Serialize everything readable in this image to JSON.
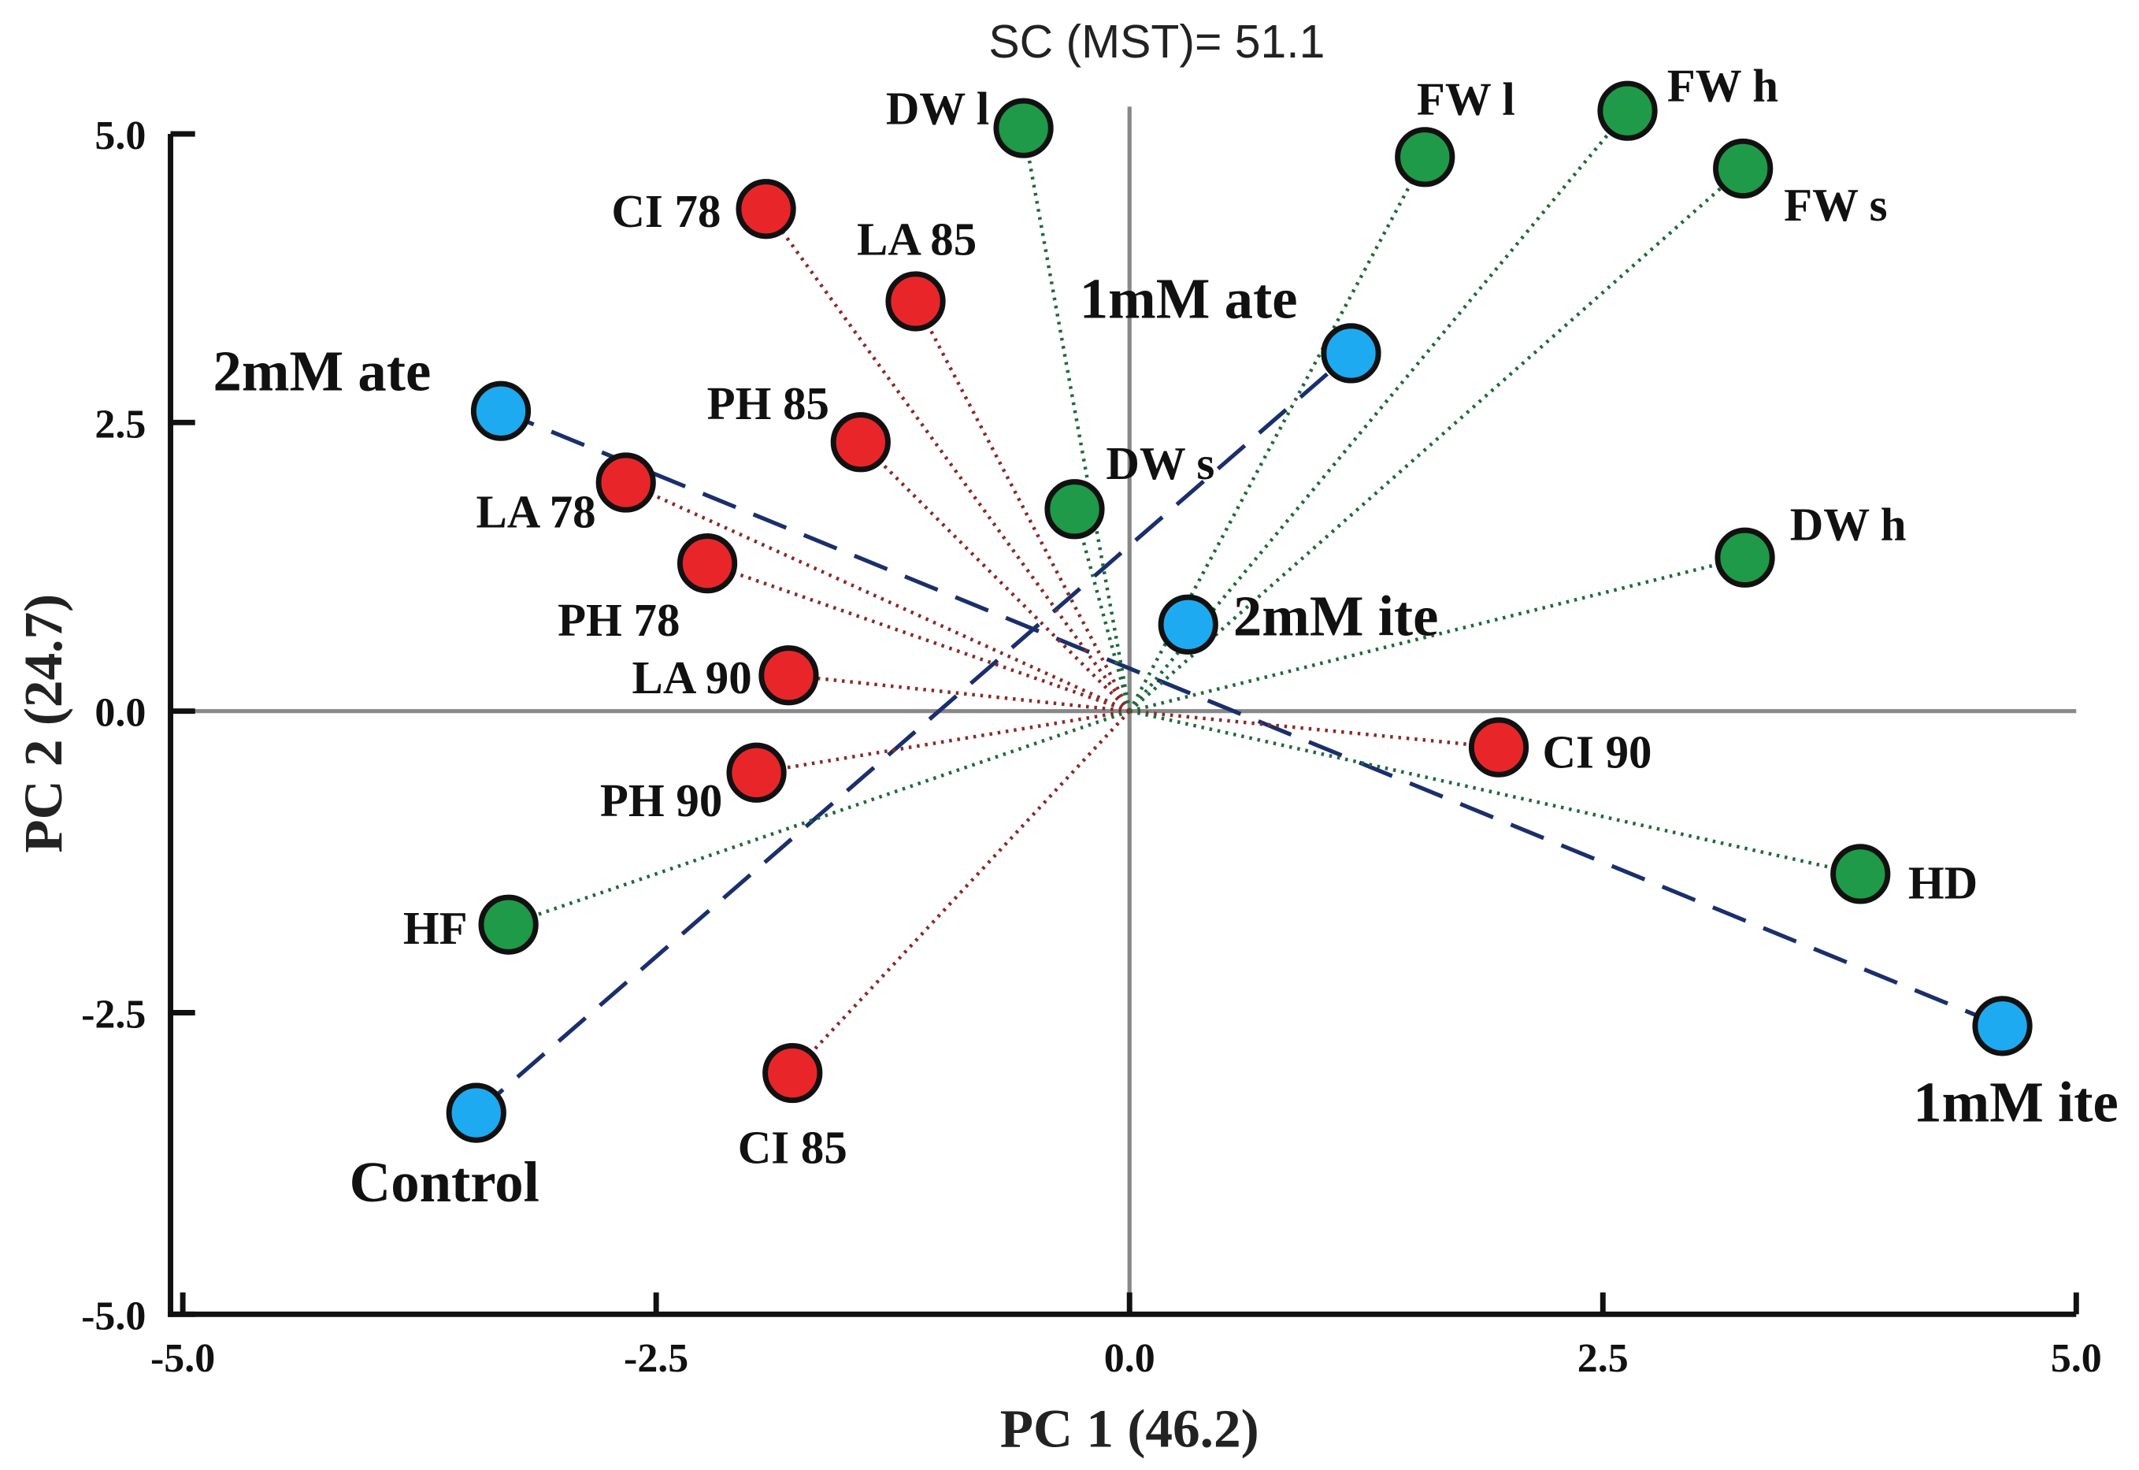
{
  "chart_data": {
    "type": "scatter",
    "title": "SC (MST)= 51.1",
    "xlabel": "PC 1 (46.2)",
    "ylabel": "PC 2 (24.7)",
    "xlim": [
      -5,
      5
    ],
    "ylim": [
      -5,
      5
    ],
    "xticks": [
      "-5.0",
      "-2.5",
      "0.0",
      "2.5",
      "5.0"
    ],
    "yticks": [
      "5.0",
      "2.5",
      "0.0",
      "-2.5",
      "-5.0"
    ],
    "colors": {
      "treatment": "#1eaaf0",
      "red": "#e8262a",
      "green": "#1f9a48",
      "dashed": "#1a2f6b",
      "axis": "#888888"
    },
    "points": [
      {
        "label": "DW l",
        "group": "green",
        "x": -0.56,
        "y": 5.05
      },
      {
        "label": "FW l",
        "group": "green",
        "x": 1.56,
        "y": 4.8
      },
      {
        "label": "FW h",
        "group": "green",
        "x": 2.63,
        "y": 5.2
      },
      {
        "label": "FW s",
        "group": "green",
        "x": 3.24,
        "y": 4.7
      },
      {
        "label": "CI 78",
        "group": "red",
        "x": -1.92,
        "y": 4.35
      },
      {
        "label": "LA 85",
        "group": "red",
        "x": -1.13,
        "y": 3.55
      },
      {
        "label": "1mM ate",
        "group": "treatment",
        "x": 1.17,
        "y": 3.1
      },
      {
        "label": "2mM ate",
        "group": "treatment",
        "x": -3.32,
        "y": 2.6
      },
      {
        "label": "PH 85",
        "group": "red",
        "x": -1.42,
        "y": 2.33
      },
      {
        "label": "LA 78",
        "group": "red",
        "x": -2.66,
        "y": 1.98
      },
      {
        "label": "DW s",
        "group": "green",
        "x": -0.29,
        "y": 1.75
      },
      {
        "label": "DW h",
        "group": "green",
        "x": 3.25,
        "y": 1.33
      },
      {
        "label": "PH 78",
        "group": "red",
        "x": -2.23,
        "y": 1.28
      },
      {
        "label": "2mM ite",
        "group": "treatment",
        "x": 0.31,
        "y": 0.75
      },
      {
        "label": "LA 90",
        "group": "red",
        "x": -1.8,
        "y": 0.31
      },
      {
        "label": "CI 90",
        "group": "red",
        "x": 1.95,
        "y": -0.3
      },
      {
        "label": "PH 90",
        "group": "red",
        "x": -1.97,
        "y": -0.51
      },
      {
        "label": "HD",
        "group": "green",
        "x": 3.86,
        "y": -1.35
      },
      {
        "label": "HF",
        "group": "green",
        "x": -3.28,
        "y": -1.77
      },
      {
        "label": "1mM ite",
        "group": "treatment",
        "x": 4.61,
        "y": -2.61
      },
      {
        "label": "CI 85",
        "group": "red",
        "x": -1.78,
        "y": -3.0
      },
      {
        "label": "Control",
        "group": "treatment",
        "x": -3.45,
        "y": -3.33
      }
    ],
    "dashed_lines": [
      [
        "2mM ate",
        "1mM ite"
      ],
      [
        "Control",
        "1mM ate"
      ]
    ]
  }
}
